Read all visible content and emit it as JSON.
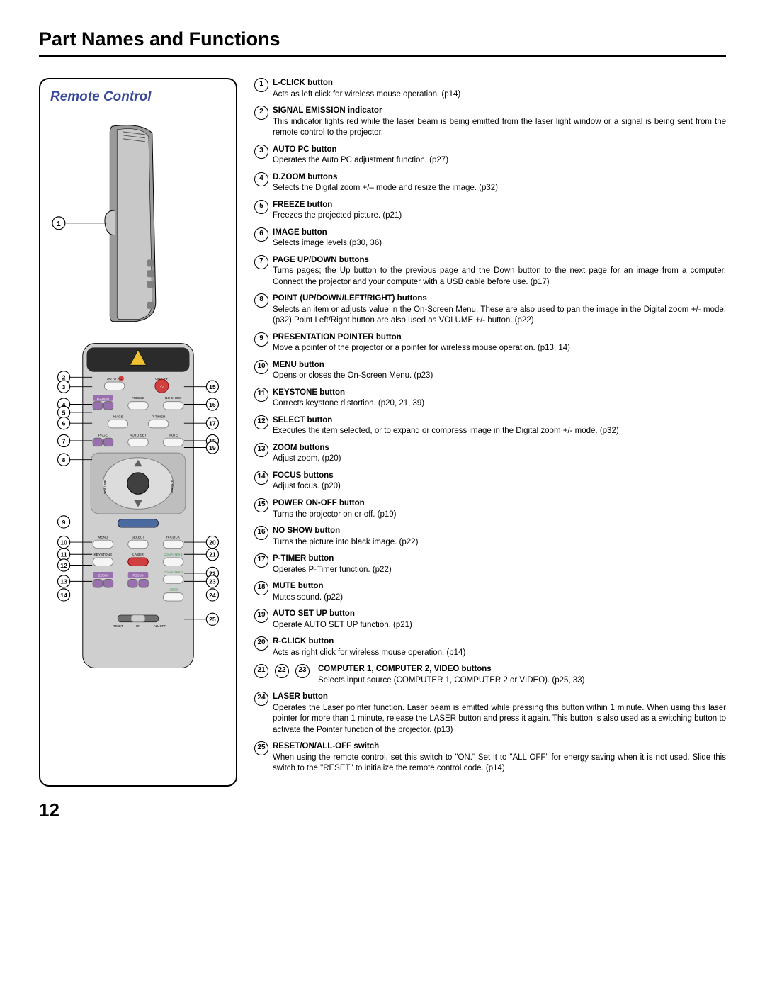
{
  "page_title": "Part Names and Functions",
  "panel_title": "Remote Control",
  "page_number": "12",
  "items": [
    {
      "n": "1",
      "title": "L-CLICK button",
      "text": "Acts as left click for wireless mouse operation. (p14)"
    },
    {
      "n": "2",
      "title": "SIGNAL EMISSION indicator",
      "text": "This indicator lights red while the laser beam is being emitted from the laser light window or a signal is being sent from the remote control to the projector."
    },
    {
      "n": "3",
      "title": "AUTO PC button",
      "text": "Operates the Auto PC adjustment function. (p27)"
    },
    {
      "n": "4",
      "title": "D.ZOOM buttons",
      "text": "Selects the Digital zoom +/– mode and resize the image. (p32)"
    },
    {
      "n": "5",
      "title": "FREEZE button",
      "text": "Freezes the projected picture. (p21)"
    },
    {
      "n": "6",
      "title": "IMAGE button",
      "text": "Selects image levels.(p30, 36)"
    },
    {
      "n": "7",
      "title": "PAGE UP/DOWN buttons",
      "text": "Turns pages; the Up button to the previous page and the Down button to the next page for an image from a computer.  Connect the projector and your computer with a USB cable before use.  (p17)"
    },
    {
      "n": "8",
      "title": "POINT (UP/DOWN/LEFT/RIGHT) buttons",
      "text": "Selects an item or adjusts value in the On-Screen Menu. These are also used to pan the image in the Digital zoom +/- mode. (p32)\nPoint Left/Right button are also used as VOLUME +/- button. (p22)"
    },
    {
      "n": "9",
      "title": "PRESENTATION POINTER button",
      "text": "Move a pointer of the projector or a pointer for wireless mouse operation. (p13, 14)"
    },
    {
      "n": "10",
      "title": "MENU button",
      "text": "Opens or closes the On-Screen Menu.  (p23)"
    },
    {
      "n": "11",
      "title": "KEYSTONE button",
      "text": "Corrects keystone distortion. (p20, 21, 39)"
    },
    {
      "n": "12",
      "title": "SELECT button",
      "text": "Executes the item selected, or to expand or compress image in the Digital zoom +/- mode. (p32)"
    },
    {
      "n": "13",
      "title": "ZOOM buttons",
      "text": "Adjust zoom. (p20)"
    },
    {
      "n": "14",
      "title": "FOCUS buttons",
      "text": "Adjust focus. (p20)"
    },
    {
      "n": "15",
      "title": "POWER ON-OFF button",
      "text": "Turns the projector on or off. (p19)"
    },
    {
      "n": "16",
      "title": "NO SHOW button",
      "text": "Turns the picture into black image. (p22)"
    },
    {
      "n": "17",
      "title": "P-TIMER button",
      "text": "Operates P-Timer function. (p22)"
    },
    {
      "n": "18",
      "title": "MUTE button",
      "text": "Mutes sound. (p22)"
    },
    {
      "n": "19",
      "title": "AUTO SET UP button",
      "text": "Operate AUTO SET UP function. (p21)"
    },
    {
      "n": "20",
      "title": "R-CLICK button",
      "text": "Acts as right click for wireless mouse operation.  (p14)"
    },
    {
      "n": "21 22 23",
      "title": "COMPUTER 1, COMPUTER 2, VIDEO buttons",
      "text": "Selects input source (COMPUTER 1, COMPUTER 2 or VIDEO).  (p25, 33)",
      "multi": [
        "21",
        "22",
        "23"
      ]
    },
    {
      "n": "24",
      "title": "LASER button",
      "text": "Operates the Laser pointer function.  Laser beam is emitted while pressing this button within 1 minute.  When using this laser pointer for more than 1 minute, release the LASER button and press it again.  This button is also used as a switching button to activate the Pointer function of the projector.  (p13)"
    },
    {
      "n": "25",
      "title": "RESET/ON/ALL-OFF switch",
      "text": "When using the remote control, set this switch to \"ON.\" Set it to \"ALL OFF\" for energy saving when it is not used.  Slide this switch to the \"RESET\" to initialize the remote control code. (p14)"
    }
  ],
  "remote_buttons": {
    "row1": [
      "AUTO PC",
      "ON-OFF"
    ],
    "row2": [
      "D.ZOOM",
      "FREEZE",
      "NO SHOW"
    ],
    "row3": [
      "IMAGE",
      "P-TIMER"
    ],
    "row4": [
      "PAGE",
      "AUTO SET",
      "MUTE"
    ],
    "row5_left": "VOLUME",
    "row5_right": "P-TIMER",
    "row6": [
      "MENU",
      "SELECT",
      "R-CLICK"
    ],
    "row7": [
      "KEYSTONE",
      "LASER",
      "COMPUTER 1"
    ],
    "row8": [
      "",
      "",
      "COMPUTER 2"
    ],
    "row9": [
      "ZOOM",
      "FOCUS",
      "VIDEO"
    ],
    "switch": [
      "RESET",
      "ON",
      "ALL OFF"
    ]
  },
  "callouts_left": [
    "1",
    "2",
    "3",
    "4",
    "5",
    "6",
    "7",
    "8",
    "9",
    "10",
    "11",
    "12",
    "13",
    "14"
  ],
  "callouts_right": [
    "15",
    "16",
    "17",
    "18",
    "19",
    "20",
    "21",
    "22",
    "23",
    "24",
    "25"
  ],
  "colors": {
    "panel_title": "#3a4a9a",
    "remote_body": "#cfcfcf",
    "remote_dark": "#5a5a5a",
    "remote_top": "#2b2b2b",
    "accent_purple": "#9a6fb0",
    "accent_red": "#d04040",
    "accent_green": "#2f8f3f",
    "warn_yellow": "#f0c030",
    "button_white": "#f5f5f5"
  }
}
